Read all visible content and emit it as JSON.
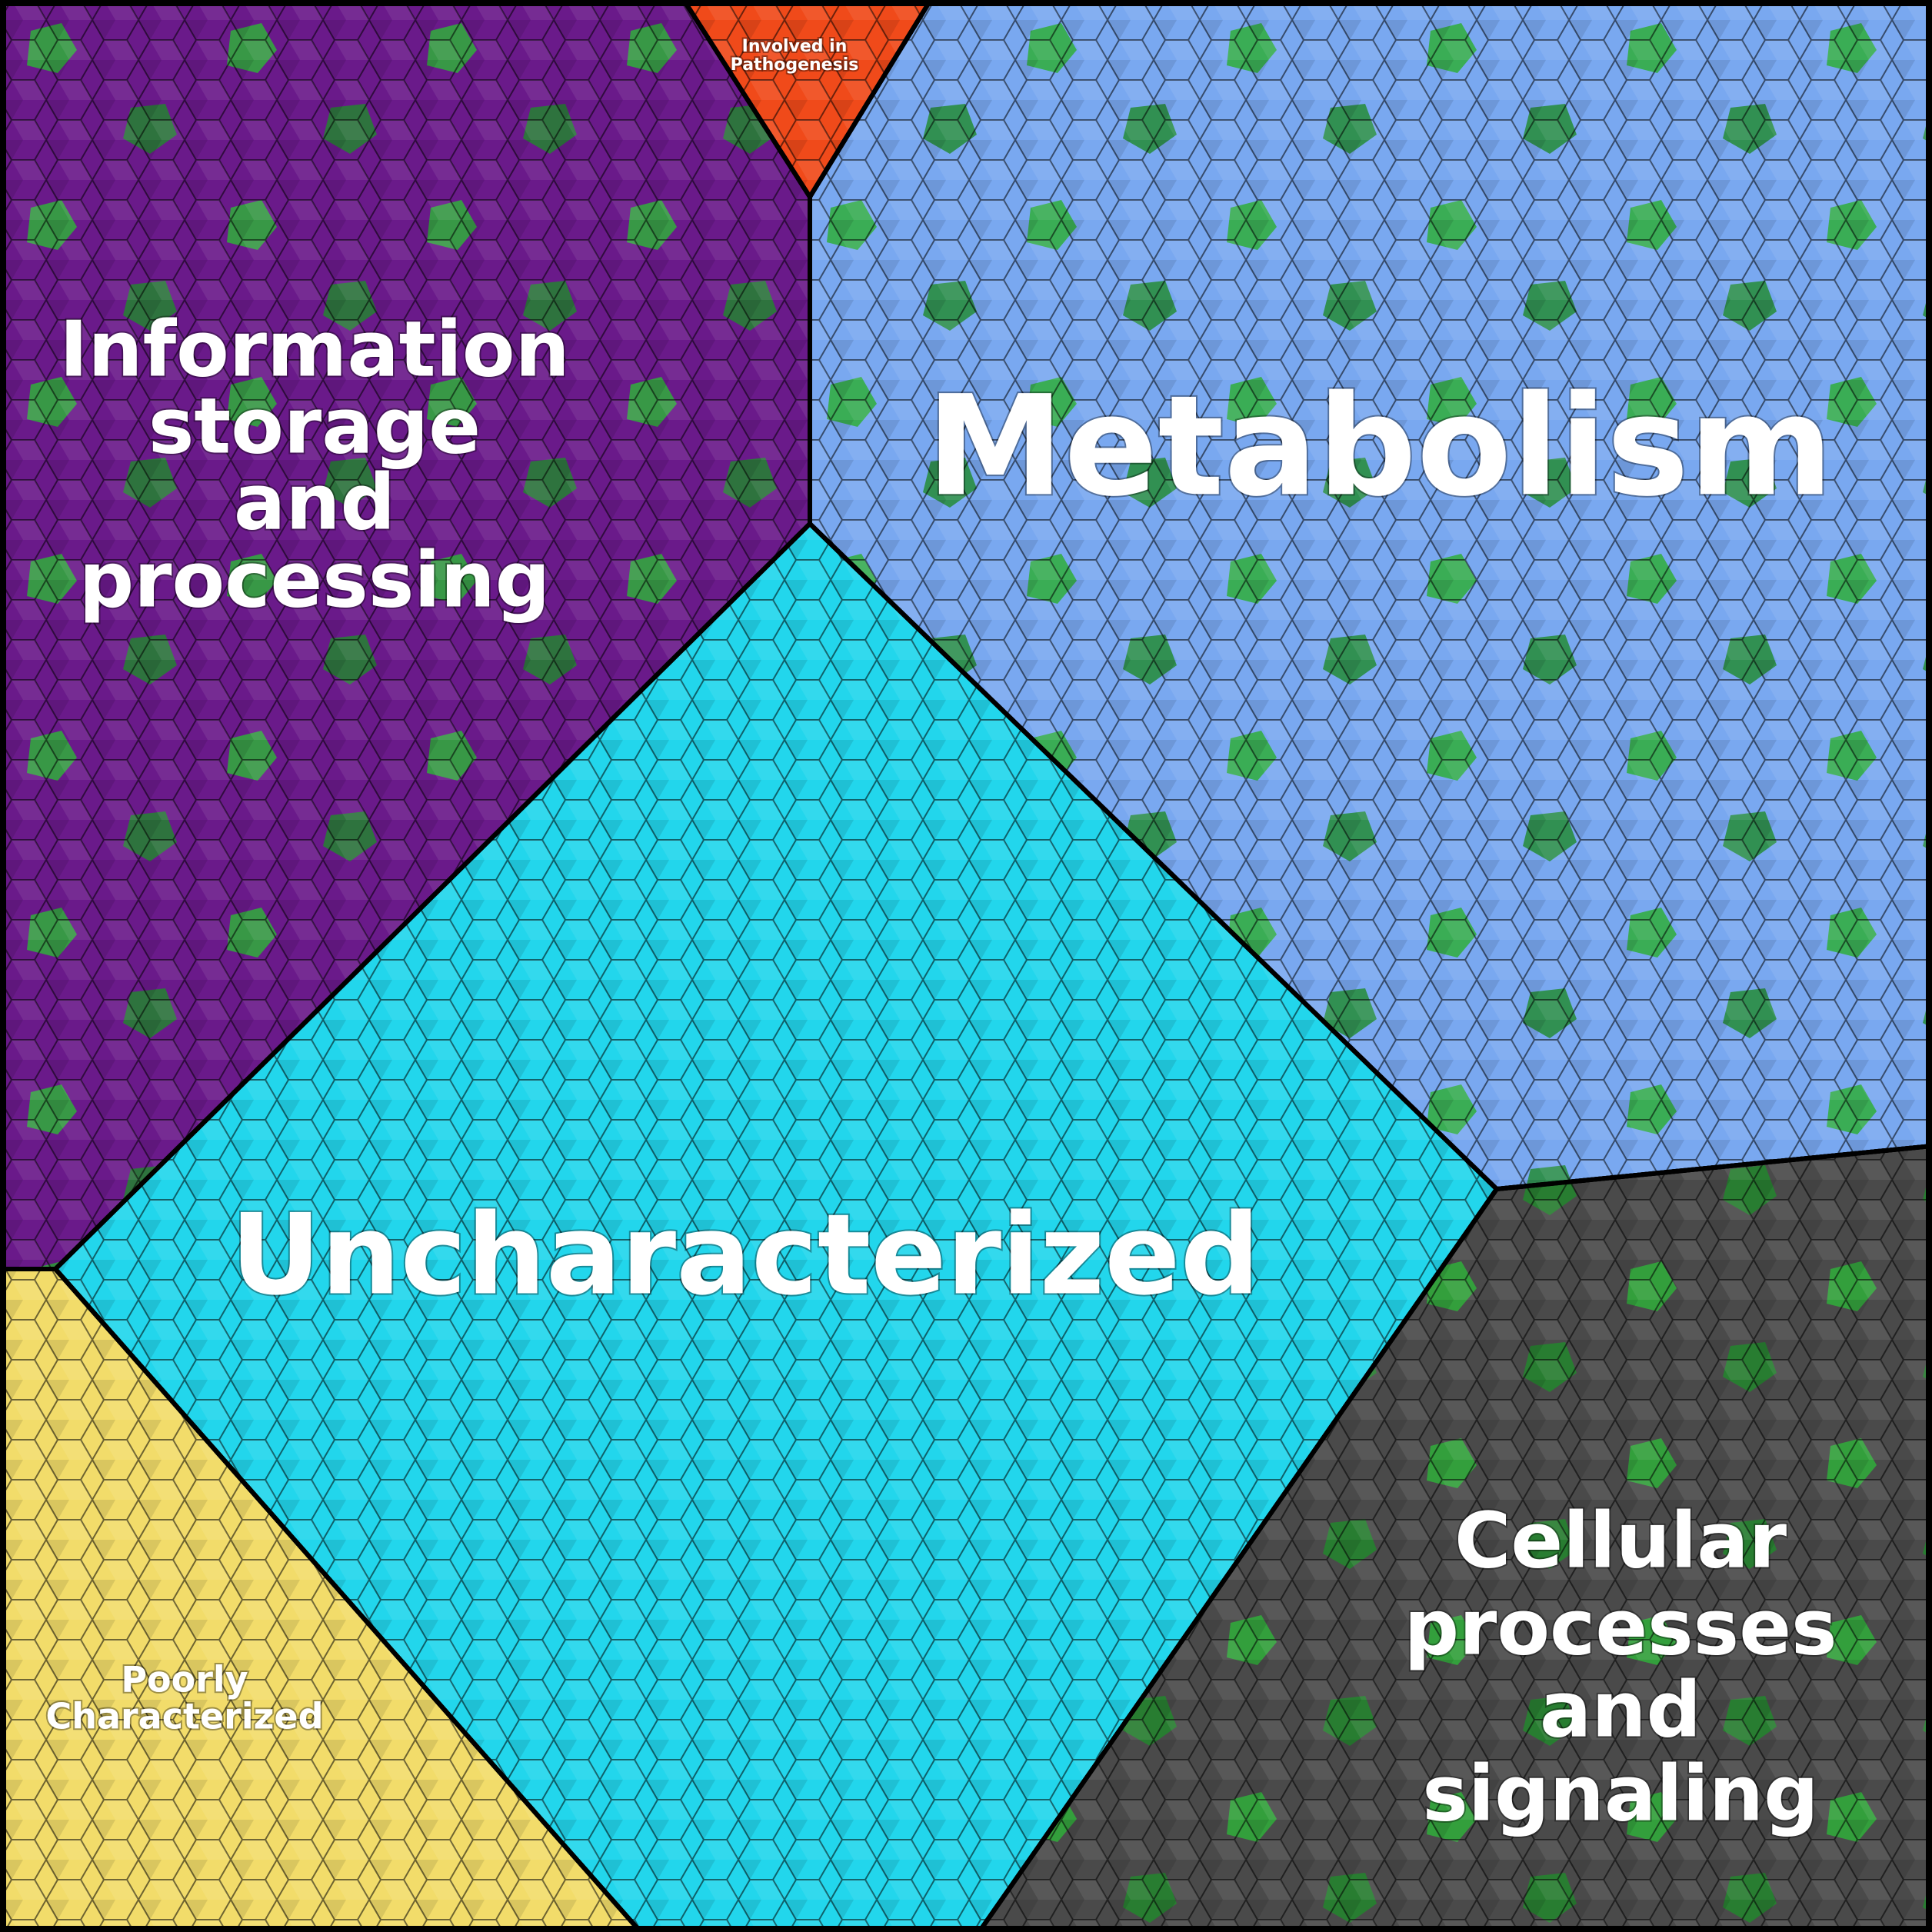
{
  "regions": [
    {
      "label": [
        "Information",
        "storage",
        "and",
        "processing"
      ]
    },
    {
      "label": [
        "Involved in",
        "Pathogenesis"
      ]
    },
    {
      "label": [
        "Metabolism"
      ]
    },
    {
      "label": [
        "Uncharacterized"
      ]
    },
    {
      "label": [
        "Poorly",
        "Characterized"
      ]
    },
    {
      "label": [
        "Cellular",
        "processes",
        "and",
        "signaling"
      ]
    }
  ]
}
